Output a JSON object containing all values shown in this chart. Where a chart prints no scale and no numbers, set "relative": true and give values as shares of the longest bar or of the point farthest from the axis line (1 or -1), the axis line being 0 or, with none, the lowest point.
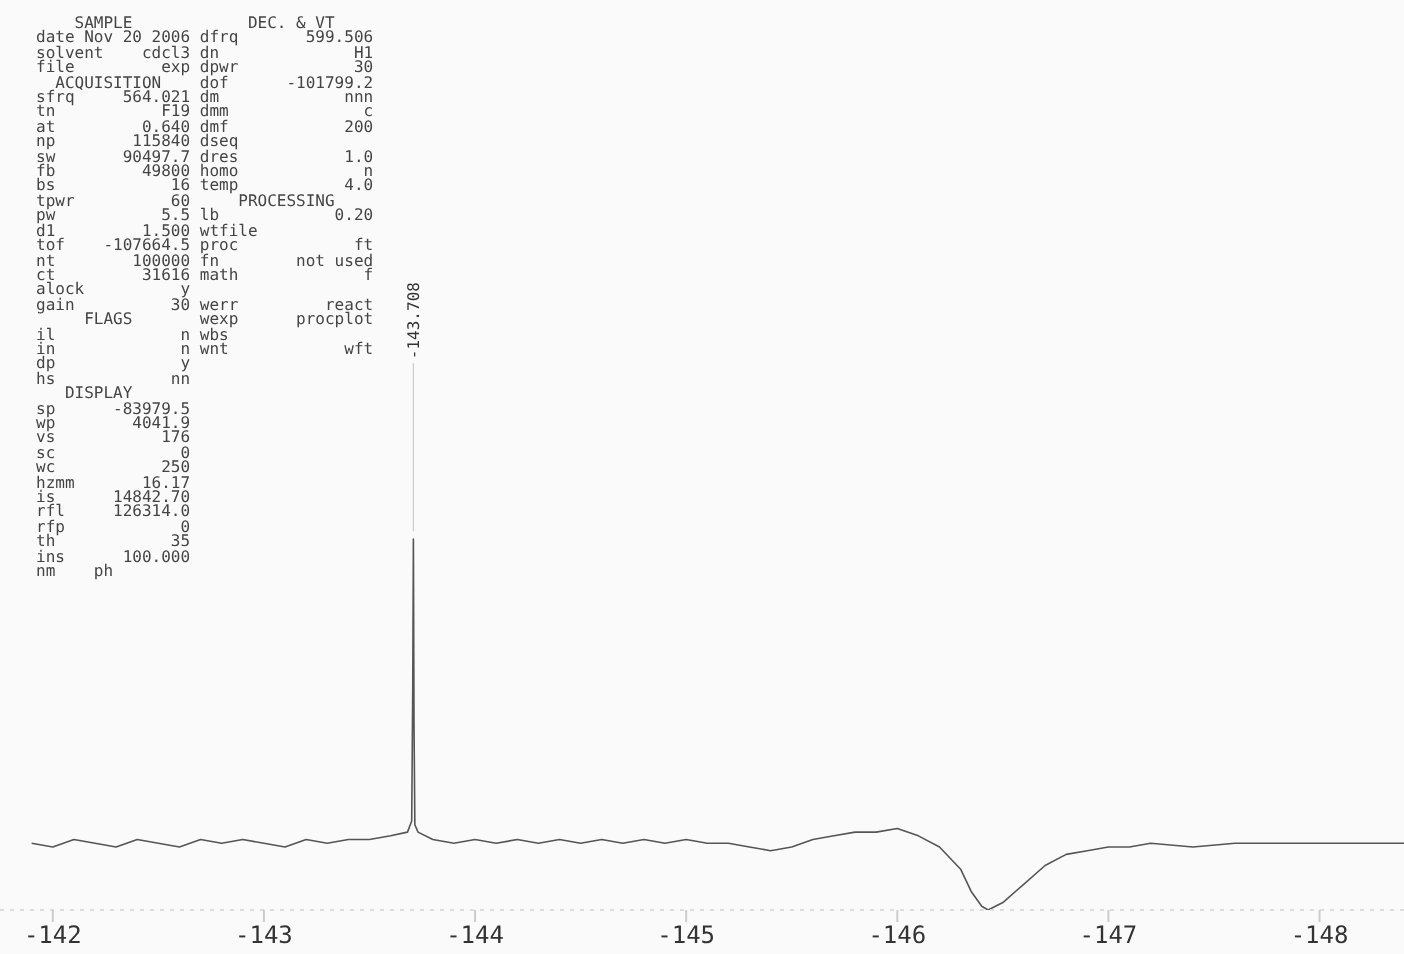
{
  "chart_data": {
    "type": "line",
    "relative": true,
    "marker": "none",
    "xlim": [
      -141.75,
      -148.4
    ],
    "xticks": [
      -142,
      -143,
      -144,
      -145,
      -146,
      -147,
      -148
    ],
    "x": [
      -141.9,
      -142.0,
      -142.1,
      -142.2,
      -142.3,
      -142.4,
      -142.5,
      -142.6,
      -142.7,
      -142.8,
      -142.9,
      -143.0,
      -143.1,
      -143.2,
      -143.3,
      -143.4,
      -143.5,
      -143.6,
      -143.68,
      -143.7,
      -143.705,
      -143.708,
      -143.711,
      -143.715,
      -143.73,
      -143.8,
      -143.9,
      -144.0,
      -144.1,
      -144.2,
      -144.3,
      -144.4,
      -144.5,
      -144.6,
      -144.7,
      -144.8,
      -144.9,
      -145.0,
      -145.1,
      -145.2,
      -145.3,
      -145.4,
      -145.5,
      -145.6,
      -145.7,
      -145.8,
      -145.9,
      -146.0,
      -146.1,
      -146.2,
      -146.3,
      -146.35,
      -146.4,
      -146.43,
      -146.5,
      -146.6,
      -146.7,
      -146.8,
      -146.9,
      -147.0,
      -147.1,
      -147.2,
      -147.4,
      -147.6,
      -147.8,
      -148.0,
      -148.2,
      -148.4
    ],
    "series": [
      {
        "color": "#555555",
        "values": [
          0.18,
          0.17,
          0.19,
          0.18,
          0.17,
          0.19,
          0.18,
          0.17,
          0.19,
          0.18,
          0.19,
          0.18,
          0.17,
          0.19,
          0.18,
          0.19,
          0.19,
          0.2,
          0.21,
          0.24,
          0.6,
          1,
          0.5,
          0.23,
          0.21,
          0.19,
          0.18,
          0.19,
          0.18,
          0.19,
          0.18,
          0.19,
          0.18,
          0.19,
          0.18,
          0.19,
          0.18,
          0.19,
          0.18,
          0.18,
          0.17,
          0.16,
          0.17,
          0.19,
          0.2,
          0.21,
          0.21,
          0.22,
          0.2,
          0.17,
          0.11,
          0.05,
          0.01,
          0,
          0.02,
          0.07,
          0.12,
          0.15,
          0.16,
          0.17,
          0.17,
          0.18,
          0.17,
          0.18,
          0.18,
          0.18,
          0.18,
          0.18
        ]
      }
    ],
    "annotations": [
      {
        "text": "-143.708",
        "x": -143.708,
        "y": 1
      },
      "    SAMPLE            DEC. & VT",
      "date Nov 20 2006 dfrq       599.506",
      "solvent    cdcl3 dn              H1",
      "file         exp dpwr            30",
      "  ACQUISITION    dof      -101799.2",
      "sfrq     564.021 dm             nnn",
      "tn           F19 dmm              c",
      "at         0.640 dmf            200",
      "np        115840 dseq",
      "sw       90497.7 dres           1.0",
      "fb         49800 homo             n",
      "bs            16 temp           4.0",
      "tpwr          60     PROCESSING",
      "pw           5.5 lb            0.20",
      "d1         1.500 wtfile",
      "tof    -107664.5 proc            ft",
      "nt        100000 fn        not used",
      "ct         31616 math             f",
      "alock          y",
      "gain          30 werr         react",
      "     FLAGS       wexp      procplot",
      "il             n wbs",
      "in             n wnt            wft",
      "dp             y",
      "hs            nn",
      "   DISPLAY",
      "sp      -83979.5",
      "wp        4041.9",
      "vs           176",
      "sc             0",
      "wc           250",
      "hzmm       16.17",
      "is      14842.70",
      "rfl     126314.0",
      "rfp            0",
      "th            35",
      "ins      100.000",
      "nm    ph"
    ]
  }
}
